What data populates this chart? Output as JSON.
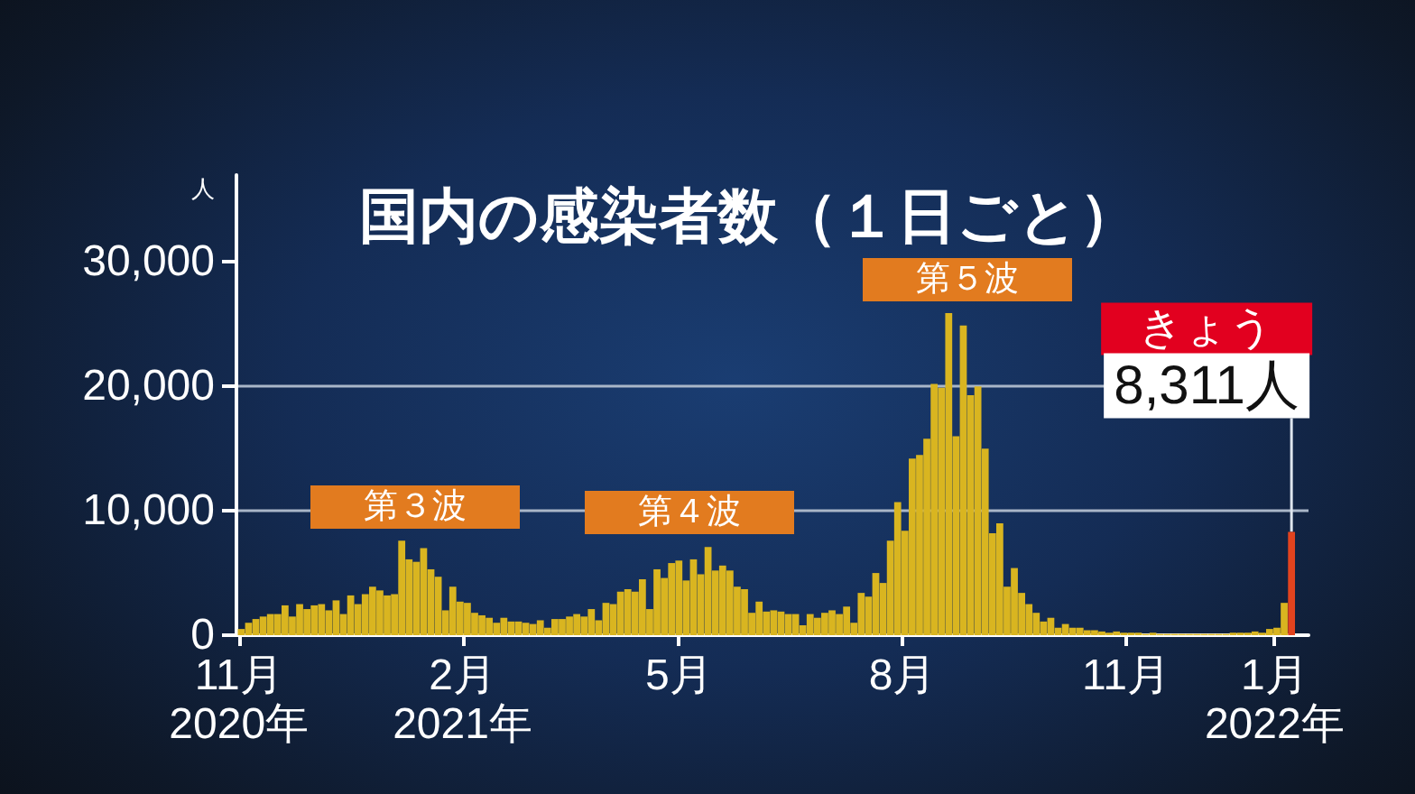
{
  "chart_data": {
    "type": "bar",
    "title": "国内の感染者数（１日ごと）",
    "ylabel": "人",
    "xlim": [
      "2020-10-31",
      "2022-01-15"
    ],
    "xticks": [
      {
        "value": "2020-11-01",
        "label": "11月\n2020年"
      },
      {
        "value": "2021-02-01",
        "label": "2月\n2021年"
      },
      {
        "value": "2021-05-01",
        "label": "5月"
      },
      {
        "value": "2021-08-01",
        "label": "8月"
      },
      {
        "value": "2021-11-01",
        "label": "11月"
      },
      {
        "value": "2022-01-01",
        "label": "1月\n2022年"
      }
    ],
    "ylim": [
      0,
      37000
    ],
    "yticks": [
      0,
      {
        "value": 10000,
        "label": "10,000"
      },
      {
        "value": 20000,
        "label": "20,000"
      },
      {
        "value": 30000,
        "label": "30,000"
      }
    ],
    "grid": "y",
    "series": [
      {
        "color": "#d9b520",
        "x": [
          "2020-11-02",
          "2020-11-05",
          "2020-11-08",
          "2020-11-11",
          "2020-11-14",
          "2020-11-17",
          "2020-11-20",
          "2020-11-23",
          "2020-11-26",
          "2020-11-29",
          "2020-12-02",
          "2020-12-05",
          "2020-12-08",
          "2020-12-11",
          "2020-12-14",
          "2020-12-17",
          "2020-12-20",
          "2020-12-23",
          "2020-12-26",
          "2020-12-29",
          "2021-01-01",
          "2021-01-04",
          "2021-01-07",
          "2021-01-10",
          "2021-01-13",
          "2021-01-16",
          "2021-01-19",
          "2021-01-22",
          "2021-01-25",
          "2021-01-28",
          "2021-01-31",
          "2021-02-03",
          "2021-02-06",
          "2021-02-09",
          "2021-02-12",
          "2021-02-15",
          "2021-02-18",
          "2021-02-21",
          "2021-02-24",
          "2021-02-27",
          "2021-03-02",
          "2021-03-05",
          "2021-03-08",
          "2021-03-11",
          "2021-03-14",
          "2021-03-17",
          "2021-03-20",
          "2021-03-23",
          "2021-03-26",
          "2021-03-29",
          "2021-04-01",
          "2021-04-04",
          "2021-04-07",
          "2021-04-10",
          "2021-04-13",
          "2021-04-16",
          "2021-04-19",
          "2021-04-22",
          "2021-04-25",
          "2021-04-28",
          "2021-05-01",
          "2021-05-04",
          "2021-05-07",
          "2021-05-10",
          "2021-05-13",
          "2021-05-16",
          "2021-05-19",
          "2021-05-22",
          "2021-05-25",
          "2021-05-28",
          "2021-05-31",
          "2021-06-03",
          "2021-06-06",
          "2021-06-09",
          "2021-06-12",
          "2021-06-15",
          "2021-06-18",
          "2021-06-21",
          "2021-06-24",
          "2021-06-27",
          "2021-06-30",
          "2021-07-03",
          "2021-07-06",
          "2021-07-09",
          "2021-07-12",
          "2021-07-15",
          "2021-07-18",
          "2021-07-21",
          "2021-07-24",
          "2021-07-27",
          "2021-07-30",
          "2021-08-02",
          "2021-08-05",
          "2021-08-08",
          "2021-08-11",
          "2021-08-14",
          "2021-08-17",
          "2021-08-20",
          "2021-08-23",
          "2021-08-26",
          "2021-08-29",
          "2021-09-01",
          "2021-09-04",
          "2021-09-07",
          "2021-09-10",
          "2021-09-13",
          "2021-09-16",
          "2021-09-19",
          "2021-09-22",
          "2021-09-25",
          "2021-09-28",
          "2021-10-01",
          "2021-10-04",
          "2021-10-07",
          "2021-10-10",
          "2021-10-13",
          "2021-10-16",
          "2021-10-19",
          "2021-10-22",
          "2021-10-25",
          "2021-10-28",
          "2021-10-31",
          "2021-11-03",
          "2021-11-06",
          "2021-11-09",
          "2021-11-12",
          "2021-11-15",
          "2021-11-18",
          "2021-11-21",
          "2021-11-24",
          "2021-11-27",
          "2021-11-30",
          "2021-12-03",
          "2021-12-06",
          "2021-12-09",
          "2021-12-12",
          "2021-12-15",
          "2021-12-18",
          "2021-12-21",
          "2021-12-24",
          "2021-12-27",
          "2021-12-30",
          "2022-01-02",
          "2022-01-05"
        ],
        "values": [
          500,
          1000,
          1300,
          1500,
          1700,
          1700,
          2400,
          1500,
          2500,
          2100,
          2400,
          2500,
          2000,
          2800,
          1700,
          3200,
          2500,
          3300,
          3900,
          3600,
          3200,
          3300,
          7600,
          6100,
          5900,
          7000,
          5300,
          4700,
          2000,
          3900,
          2700,
          2600,
          1800,
          1600,
          1400,
          1000,
          1400,
          1100,
          1100,
          1000,
          900,
          1200,
          600,
          1300,
          1300,
          1500,
          1700,
          1500,
          2100,
          1200,
          2600,
          2500,
          3500,
          3700,
          3500,
          4500,
          2100,
          5300,
          4600,
          5800,
          6000,
          4400,
          6100,
          4900,
          7100,
          5200,
          5600,
          5200,
          3900,
          3700,
          1800,
          2700,
          1900,
          2000,
          1900,
          1700,
          1700,
          800,
          1700,
          1400,
          1800,
          2000,
          1700,
          2300,
          1000,
          3400,
          3100,
          5000,
          4200,
          7600,
          10700,
          8400,
          14200,
          14500,
          15800,
          20200,
          19900,
          25900,
          16000,
          24900,
          19300,
          20000,
          15000,
          8200,
          9000,
          3900,
          5400,
          3400,
          2500,
          1800,
          1100,
          1400,
          600,
          900,
          600,
          600,
          400,
          400,
          300,
          200,
          300,
          200,
          200,
          200,
          100,
          200,
          100,
          100,
          100,
          100,
          100,
          100,
          100,
          100,
          100,
          100,
          200,
          200,
          200,
          300,
          200,
          500,
          600,
          2600
        ]
      },
      {
        "color": "#e2431e",
        "x": [
          "2022-01-08"
        ],
        "values": [
          8311
        ],
        "value_labels": [
          "8,311人"
        ]
      }
    ],
    "annotations": [
      "第３波",
      "第４波",
      "第５波",
      "きょう"
    ]
  }
}
